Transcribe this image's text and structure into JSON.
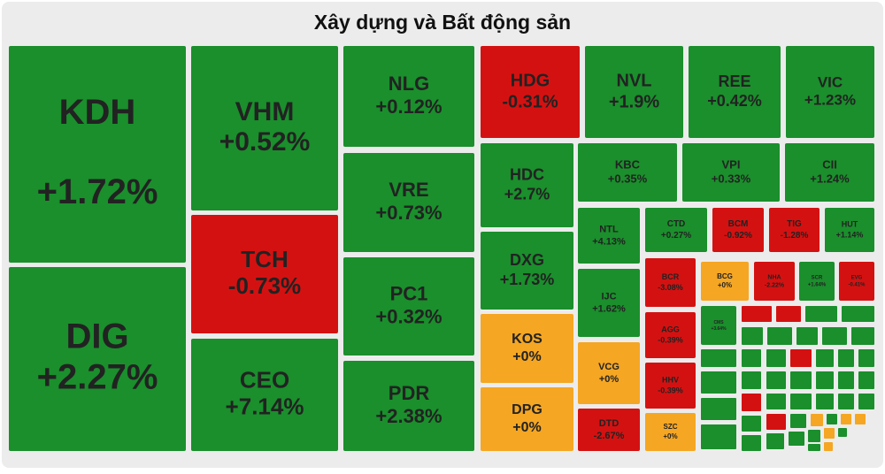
{
  "chart_data": {
    "type": "treemap",
    "title": "Xây dựng và Bất động sản",
    "categories": [
      "KDH",
      "DIG",
      "VHM",
      "TCH",
      "CEO",
      "NLG",
      "VRE",
      "PC1",
      "PDR",
      "HDG",
      "NVL",
      "REE",
      "VIC",
      "HDC",
      "DXG",
      "KOS",
      "DPG",
      "KBC",
      "VPI",
      "CII",
      "NTL",
      "IJC",
      "VCG",
      "DTD",
      "CTD",
      "BCM",
      "TIG",
      "HUT",
      "BCR",
      "AGG",
      "HHV",
      "SZC",
      "BCG",
      "NHA",
      "SCR",
      "EVG",
      "CMS"
    ],
    "values": [
      1.72,
      2.27,
      0.52,
      -0.73,
      7.14,
      0.12,
      0.73,
      0.32,
      2.38,
      -0.31,
      1.9,
      0.42,
      1.23,
      2.7,
      1.73,
      0,
      0,
      0.35,
      0.33,
      1.24,
      4.13,
      1.62,
      0,
      -2.67,
      0.27,
      -0.92,
      -1.28,
      1.14,
      -3.08,
      -0.39,
      -0.39,
      0,
      0,
      -2.22,
      1.64,
      -0.41,
      3.64
    ],
    "value_labels": [
      "+1.72%",
      "+2.27%",
      "+0.52%",
      "-0.73%",
      "+7.14%",
      "+0.12%",
      "+0.73%",
      "+0.32%",
      "+2.38%",
      "-0.31%",
      "+1.9%",
      "+0.42%",
      "+1.23%",
      "+2.7%",
      "+1.73%",
      "+0%",
      "+0%",
      "+0.35%",
      "+0.33%",
      "+1.24%",
      "+4.13%",
      "+1.62%",
      "+0%",
      "-2.67%",
      "+0.27%",
      "-0.92%",
      "-1.28%",
      "+1.14%",
      "-3.08%",
      "-0.39%",
      "-0.39%",
      "+0%",
      "+0%",
      "-2.22%",
      "+1.64%",
      "-0.41%",
      "+3.64%"
    ],
    "colors": {
      "up": "#1a8f2c",
      "down": "#d41111",
      "flat": "#f5a623"
    }
  }
}
